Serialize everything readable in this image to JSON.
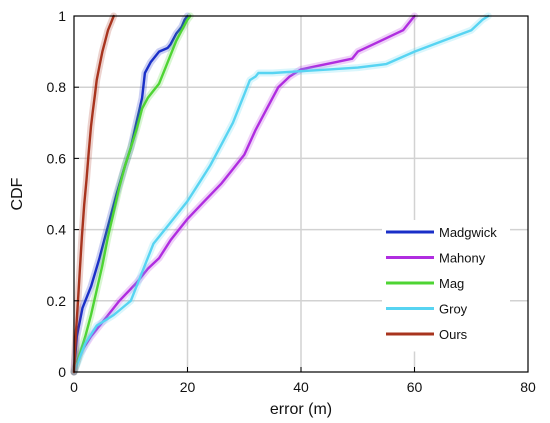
{
  "chart_data": {
    "type": "line",
    "xlabel": "error (m)",
    "ylabel": "CDF",
    "xlim": [
      0,
      80
    ],
    "ylim": [
      0,
      1
    ],
    "xticks": [
      0,
      20,
      40,
      60,
      80
    ],
    "yticks": [
      0,
      0.2,
      0.4,
      0.6,
      0.8,
      1
    ],
    "xtick_labels": [
      "0",
      "20",
      "40",
      "60",
      "80"
    ],
    "ytick_labels": [
      "0",
      "0.2",
      "0.4",
      "0.6",
      "0.8",
      "1"
    ],
    "grid": true,
    "legend_position": "bottom-right",
    "series": [
      {
        "name": "Madgwick",
        "color": "#1a2fc8",
        "x": [
          0,
          0.5,
          1.5,
          3,
          4.5,
          6,
          7.5,
          9,
          10,
          11,
          12,
          12.5,
          13.5,
          15,
          16.5,
          17,
          18,
          19,
          19.5,
          20
        ],
        "y": [
          0,
          0.1,
          0.18,
          0.24,
          0.32,
          0.41,
          0.5,
          0.58,
          0.63,
          0.7,
          0.77,
          0.84,
          0.87,
          0.9,
          0.91,
          0.92,
          0.95,
          0.97,
          0.99,
          1
        ]
      },
      {
        "name": "Mahony",
        "color": "#b02de0",
        "x": [
          0,
          1,
          3,
          5,
          8,
          11,
          13,
          15,
          17,
          20,
          23,
          26,
          28,
          30,
          32,
          34,
          36,
          38,
          40,
          43,
          46,
          49,
          50,
          54,
          58,
          59,
          60
        ],
        "y": [
          0,
          0.05,
          0.1,
          0.14,
          0.2,
          0.25,
          0.29,
          0.32,
          0.37,
          0.43,
          0.48,
          0.53,
          0.57,
          0.61,
          0.68,
          0.74,
          0.8,
          0.83,
          0.85,
          0.86,
          0.87,
          0.88,
          0.9,
          0.93,
          0.96,
          0.98,
          1
        ]
      },
      {
        "name": "Mag",
        "color": "#4ed433",
        "x": [
          0,
          1,
          2,
          3,
          4,
          5,
          6,
          7,
          8,
          9,
          10,
          11,
          12,
          13,
          14,
          15,
          16,
          17,
          18,
          19,
          20,
          20.5
        ],
        "y": [
          0,
          0.05,
          0.1,
          0.16,
          0.23,
          0.3,
          0.38,
          0.45,
          0.52,
          0.58,
          0.63,
          0.68,
          0.74,
          0.77,
          0.79,
          0.81,
          0.85,
          0.89,
          0.93,
          0.96,
          0.99,
          1
        ]
      },
      {
        "name": "Groy",
        "color": "#57d4f2",
        "x": [
          0,
          2,
          4,
          7,
          10,
          12,
          14,
          16,
          18,
          20,
          22,
          24,
          26,
          28,
          29,
          30,
          31,
          32,
          32.5,
          35,
          40,
          45,
          50,
          55,
          60,
          65,
          70,
          72,
          73
        ],
        "y": [
          0,
          0.08,
          0.13,
          0.16,
          0.2,
          0.28,
          0.36,
          0.4,
          0.44,
          0.48,
          0.53,
          0.58,
          0.64,
          0.7,
          0.74,
          0.78,
          0.82,
          0.83,
          0.84,
          0.84,
          0.845,
          0.85,
          0.855,
          0.865,
          0.9,
          0.93,
          0.96,
          0.99,
          1
        ]
      },
      {
        "name": "Ours",
        "color": "#a8341e",
        "x": [
          0,
          0.3,
          0.7,
          1,
          1.4,
          1.8,
          2.2,
          2.6,
          3,
          3.3,
          3.7,
          4,
          4.5,
          5,
          5.5,
          6,
          6.5,
          7
        ],
        "y": [
          0,
          0.1,
          0.2,
          0.28,
          0.38,
          0.47,
          0.54,
          0.62,
          0.69,
          0.73,
          0.78,
          0.82,
          0.86,
          0.9,
          0.93,
          0.96,
          0.98,
          1
        ]
      }
    ]
  }
}
